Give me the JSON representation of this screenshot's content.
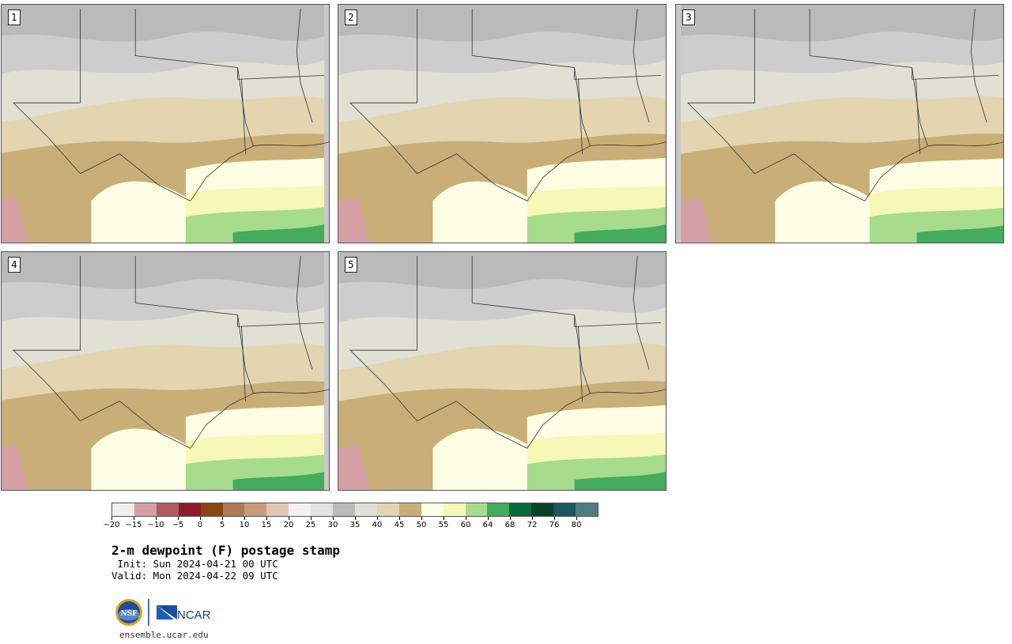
{
  "panels": [
    {
      "label": "1"
    },
    {
      "label": "2"
    },
    {
      "label": "3"
    },
    {
      "label": "4"
    },
    {
      "label": "5"
    }
  ],
  "colorbar": {
    "colors": [
      "#f4eeec",
      "#d4a0a6",
      "#b05a64",
      "#8c1a28",
      "#8a4510",
      "#b07a55",
      "#c79c7e",
      "#e2c6b4",
      "#f3f3f1",
      "#e2e2e2",
      "#bababa",
      "#e0e0d4",
      "#e2d5b0",
      "#c9ae78",
      "#fefee4",
      "#f6f8b8",
      "#a6dc8c",
      "#44ac5c",
      "#086a38",
      "#054228",
      "#1c5660",
      "#4e7e82"
    ],
    "ticks": [
      "−20",
      "−15",
      "−10",
      "−5",
      "0",
      "5",
      "10",
      "15",
      "20",
      "25",
      "30",
      "35",
      "40",
      "45",
      "50",
      "55",
      "60",
      "64",
      "68",
      "72",
      "76",
      "80"
    ]
  },
  "title": "2-m dewpoint (F) postage stamp",
  "init": " Init: Sun 2024-04-21 00 UTC",
  "valid": "Valid: Mon 2024-04-22 09 UTC",
  "logos": {
    "nsf": "NSF",
    "ncar": "NCAR"
  },
  "site": "ensemble.ucar.edu"
}
